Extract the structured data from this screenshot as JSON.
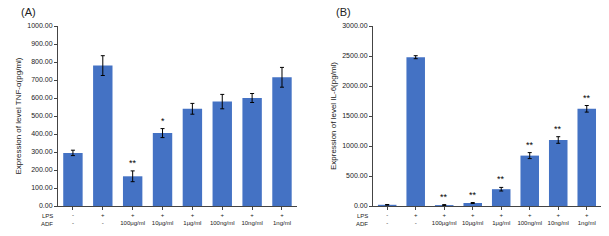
{
  "chart_data": [
    {
      "type": "bar",
      "title": "(A)",
      "ylabel": "Expression of level TNF-α(pg/ml)",
      "category_levels": [
        "LPS",
        "ADF"
      ],
      "categories": [
        [
          "-",
          "-"
        ],
        [
          "+",
          "-"
        ],
        [
          "+",
          "100μg/ml"
        ],
        [
          "+",
          "10μg/ml"
        ],
        [
          "+",
          "1μg/ml"
        ],
        [
          "+",
          "100ng/ml"
        ],
        [
          "+",
          "10ng/ml"
        ],
        [
          "+",
          "1ng/ml"
        ]
      ],
      "values": [
        295,
        780,
        165,
        405,
        540,
        580,
        600,
        715
      ],
      "errors": [
        15,
        55,
        30,
        25,
        30,
        40,
        25,
        55
      ],
      "annotations": [
        null,
        null,
        "**",
        "*",
        null,
        null,
        null,
        null
      ],
      "color": "#4472C4",
      "ylim": [
        0,
        1000
      ],
      "yticks": [
        {
          "value": 0,
          "label": "0.00"
        },
        {
          "value": 100,
          "label": "100.00"
        },
        {
          "value": 200,
          "label": "200.00"
        },
        {
          "value": 300,
          "label": "300.00"
        },
        {
          "value": 400,
          "label": "400.00"
        },
        {
          "value": 500,
          "label": "500.00"
        },
        {
          "value": 600,
          "label": "600.00"
        },
        {
          "value": 700,
          "label": "700.00"
        },
        {
          "value": 800,
          "label": "800.00"
        },
        {
          "value": 900,
          "label": "900.00"
        },
        {
          "value": 1000,
          "label": "1000.00"
        }
      ],
      "grid": false
    },
    {
      "type": "bar",
      "title": "(B)",
      "ylabel": "Expression of level IL-6(pg/ml)",
      "category_levels": [
        "LPS",
        "ADF"
      ],
      "categories": [
        [
          "-",
          "-"
        ],
        [
          "+",
          "-"
        ],
        [
          "+",
          "100μg/ml"
        ],
        [
          "+",
          "10μg/ml"
        ],
        [
          "+",
          "1μg/ml"
        ],
        [
          "+",
          "100ng/ml"
        ],
        [
          "+",
          "10ng/ml"
        ],
        [
          "+",
          "1ng/ml"
        ]
      ],
      "values": [
        20,
        2480,
        15,
        50,
        280,
        840,
        1100,
        1620
      ],
      "errors": [
        5,
        25,
        8,
        8,
        30,
        50,
        55,
        55
      ],
      "annotations": [
        null,
        null,
        "**",
        "**",
        "**",
        "**",
        "**",
        "**"
      ],
      "color": "#4472C4",
      "ylim": [
        0,
        3000
      ],
      "yticks": [
        {
          "value": 0,
          "label": "0.00"
        },
        {
          "value": 500,
          "label": "500.00"
        },
        {
          "value": 1000,
          "label": "1000.00"
        },
        {
          "value": 1500,
          "label": "1500.00"
        },
        {
          "value": 2000,
          "label": "2000.00"
        },
        {
          "value": 2500,
          "label": "2500.00"
        },
        {
          "value": 3000,
          "label": "3000.00"
        }
      ],
      "grid": false
    }
  ]
}
